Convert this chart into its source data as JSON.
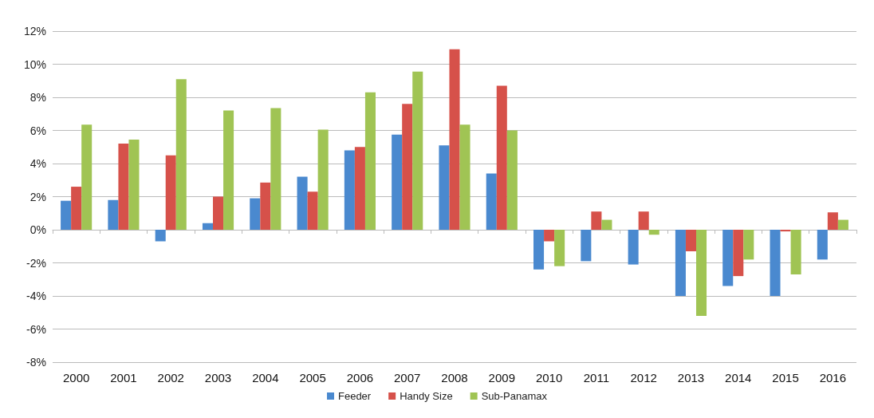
{
  "chart_data": {
    "type": "bar",
    "categories": [
      "2000",
      "2001",
      "2002",
      "2003",
      "2004",
      "2005",
      "2006",
      "2007",
      "2008",
      "2009",
      "2010",
      "2011",
      "2012",
      "2013",
      "2014",
      "2015",
      "2016"
    ],
    "series": [
      {
        "name": "Feeder",
        "color": "#4a89cf",
        "values": [
          1.75,
          1.8,
          -0.7,
          0.4,
          1.9,
          3.2,
          4.8,
          5.75,
          5.1,
          3.4,
          -2.4,
          -1.9,
          -2.1,
          -4.0,
          -3.4,
          -4.0,
          -1.8
        ]
      },
      {
        "name": "Handy Size",
        "color": "#d6514a",
        "values": [
          2.6,
          5.2,
          4.5,
          2.0,
          2.85,
          2.3,
          5.0,
          7.6,
          10.9,
          8.7,
          -0.7,
          1.1,
          1.1,
          -1.3,
          -2.8,
          -0.1,
          1.05
        ]
      },
      {
        "name": "Sub-Panamax",
        "color": "#a0c454",
        "values": [
          6.35,
          5.45,
          9.1,
          7.2,
          7.35,
          6.05,
          8.3,
          9.55,
          6.35,
          6.0,
          -2.2,
          0.6,
          -0.3,
          -5.2,
          -1.8,
          -2.7,
          0.6
        ]
      }
    ],
    "ylim": [
      -8,
      12
    ],
    "yticks": [
      {
        "value": -8,
        "label": "-8%"
      },
      {
        "value": -6,
        "label": "-6%"
      },
      {
        "value": -4,
        "label": "-4%"
      },
      {
        "value": -2,
        "label": "-2%"
      },
      {
        "value": 0,
        "label": "0%"
      },
      {
        "value": 2,
        "label": "2%"
      },
      {
        "value": 4,
        "label": "4%"
      },
      {
        "value": 6,
        "label": "6%"
      },
      {
        "value": 8,
        "label": "8%"
      },
      {
        "value": 10,
        "label": "10%"
      },
      {
        "value": 12,
        "label": "12%"
      }
    ],
    "grid": "y",
    "legend": "bottom"
  }
}
